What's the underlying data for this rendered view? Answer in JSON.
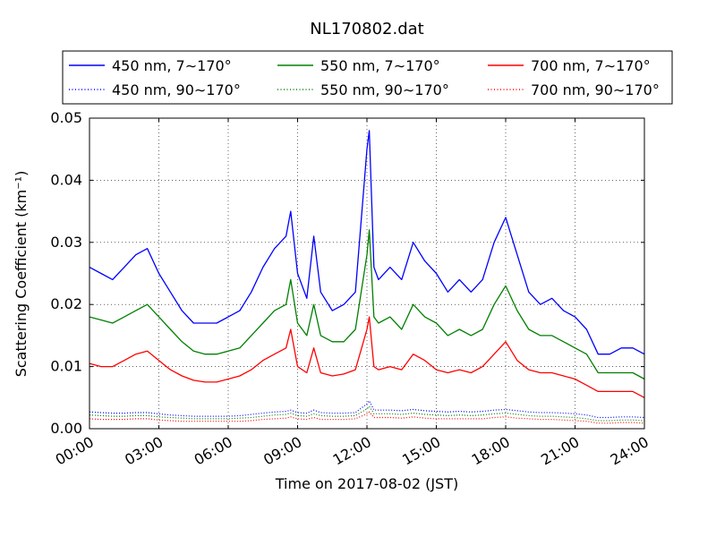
{
  "chart_data": {
    "type": "line",
    "title": "NL170802.dat",
    "xlabel": "Time on 2017-08-02 (JST)",
    "ylabel": "Scattering Coefficient (km⁻¹)",
    "xlim": [
      "00:00",
      "24:00"
    ],
    "ylim": [
      0,
      0.05
    ],
    "grid": true,
    "legend_position": "top, above plot, 3 columns",
    "x_ticks": [
      "00:00",
      "03:00",
      "06:00",
      "09:00",
      "12:00",
      "15:00",
      "18:00",
      "21:00",
      "24:00"
    ],
    "y_ticks": [
      "0.00",
      "0.01",
      "0.02",
      "0.03",
      "0.04",
      "0.05"
    ],
    "x_hours": [
      0,
      0.5,
      1,
      1.5,
      2,
      2.5,
      3,
      3.5,
      4,
      4.5,
      5,
      5.5,
      6,
      6.5,
      7,
      7.5,
      8,
      8.5,
      8.7,
      9,
      9.4,
      9.7,
      10,
      10.5,
      11,
      11.5,
      12,
      12.1,
      12.3,
      12.5,
      13,
      13.5,
      14,
      14.5,
      15,
      15.5,
      16,
      16.5,
      17,
      17.5,
      18,
      18.5,
      19,
      19.5,
      20,
      20.5,
      21,
      21.5,
      22,
      22.5,
      23,
      23.5,
      24
    ],
    "series": [
      {
        "name": "450 nm, 7∼170°",
        "color": "#0000ff",
        "style": "solid",
        "values": [
          0.026,
          0.025,
          0.024,
          0.026,
          0.028,
          0.029,
          0.025,
          0.022,
          0.019,
          0.017,
          0.017,
          0.017,
          0.018,
          0.019,
          0.022,
          0.026,
          0.029,
          0.031,
          0.035,
          0.025,
          0.021,
          0.031,
          0.022,
          0.019,
          0.02,
          0.022,
          0.045,
          0.048,
          0.026,
          0.024,
          0.026,
          0.024,
          0.03,
          0.027,
          0.025,
          0.022,
          0.024,
          0.022,
          0.024,
          0.03,
          0.034,
          0.028,
          0.022,
          0.02,
          0.021,
          0.019,
          0.018,
          0.016,
          0.012,
          0.012,
          0.013,
          0.013,
          0.012
        ]
      },
      {
        "name": "550 nm, 7∼170°",
        "color": "#008000",
        "style": "solid",
        "values": [
          0.018,
          0.0175,
          0.017,
          0.018,
          0.019,
          0.02,
          0.018,
          0.016,
          0.014,
          0.0125,
          0.012,
          0.012,
          0.0125,
          0.013,
          0.015,
          0.017,
          0.019,
          0.02,
          0.024,
          0.017,
          0.015,
          0.02,
          0.015,
          0.014,
          0.014,
          0.016,
          0.028,
          0.032,
          0.018,
          0.017,
          0.018,
          0.016,
          0.02,
          0.018,
          0.017,
          0.015,
          0.016,
          0.015,
          0.016,
          0.02,
          0.023,
          0.019,
          0.016,
          0.015,
          0.015,
          0.014,
          0.013,
          0.012,
          0.009,
          0.009,
          0.009,
          0.009,
          0.008
        ]
      },
      {
        "name": "700 nm, 7∼170°",
        "color": "#ff0000",
        "style": "solid",
        "values": [
          0.0105,
          0.01,
          0.01,
          0.011,
          0.012,
          0.0125,
          0.011,
          0.0095,
          0.0085,
          0.0078,
          0.0075,
          0.0075,
          0.008,
          0.0085,
          0.0095,
          0.011,
          0.012,
          0.013,
          0.016,
          0.01,
          0.009,
          0.013,
          0.009,
          0.0085,
          0.0088,
          0.0095,
          0.016,
          0.018,
          0.01,
          0.0095,
          0.01,
          0.0095,
          0.012,
          0.011,
          0.0095,
          0.009,
          0.0095,
          0.009,
          0.01,
          0.012,
          0.014,
          0.011,
          0.0095,
          0.009,
          0.009,
          0.0085,
          0.008,
          0.007,
          0.006,
          0.006,
          0.006,
          0.006,
          0.005
        ]
      },
      {
        "name": "450 nm, 90∼170°",
        "color": "#0000ff",
        "style": "dotted",
        "values": [
          0.0027,
          0.0026,
          0.0025,
          0.0025,
          0.0026,
          0.0026,
          0.0024,
          0.0022,
          0.0021,
          0.002,
          0.002,
          0.002,
          0.002,
          0.0021,
          0.0023,
          0.0025,
          0.0027,
          0.0028,
          0.003,
          0.0026,
          0.0025,
          0.003,
          0.0026,
          0.0025,
          0.0025,
          0.0026,
          0.004,
          0.0045,
          0.003,
          0.003,
          0.003,
          0.0029,
          0.0031,
          0.0029,
          0.0028,
          0.0027,
          0.0028,
          0.0027,
          0.0028,
          0.003,
          0.0031,
          0.0029,
          0.0027,
          0.0026,
          0.0026,
          0.0025,
          0.0024,
          0.0022,
          0.0018,
          0.0018,
          0.0019,
          0.0019,
          0.0018
        ]
      },
      {
        "name": "550 nm, 90∼170°",
        "color": "#008000",
        "style": "dotted",
        "values": [
          0.0022,
          0.0021,
          0.002,
          0.002,
          0.0021,
          0.0021,
          0.0019,
          0.0018,
          0.0017,
          0.0016,
          0.0016,
          0.0016,
          0.0016,
          0.0017,
          0.0018,
          0.002,
          0.0022,
          0.0023,
          0.0025,
          0.0021,
          0.002,
          0.0024,
          0.0021,
          0.002,
          0.002,
          0.0021,
          0.0032,
          0.0036,
          0.0024,
          0.0024,
          0.0024,
          0.0023,
          0.0025,
          0.0023,
          0.0022,
          0.0021,
          0.0022,
          0.0021,
          0.0022,
          0.0024,
          0.0025,
          0.0023,
          0.0021,
          0.002,
          0.002,
          0.0019,
          0.0018,
          0.0016,
          0.0013,
          0.0013,
          0.0014,
          0.0014,
          0.0013
        ]
      },
      {
        "name": "700 nm, 90∼170°",
        "color": "#ff0000",
        "style": "dotted",
        "values": [
          0.0016,
          0.0015,
          0.0015,
          0.0015,
          0.0016,
          0.0016,
          0.0014,
          0.0013,
          0.0012,
          0.0012,
          0.0012,
          0.0012,
          0.0012,
          0.0012,
          0.0013,
          0.0015,
          0.0016,
          0.0017,
          0.0019,
          0.0016,
          0.0015,
          0.0018,
          0.0015,
          0.0015,
          0.0015,
          0.0016,
          0.0024,
          0.0027,
          0.0018,
          0.0018,
          0.0018,
          0.0017,
          0.0019,
          0.0017,
          0.0016,
          0.0016,
          0.0016,
          0.0016,
          0.0016,
          0.0018,
          0.0019,
          0.0017,
          0.0016,
          0.0015,
          0.0015,
          0.0014,
          0.0013,
          0.0012,
          0.0009,
          0.0009,
          0.001,
          0.001,
          0.0009
        ]
      }
    ]
  }
}
